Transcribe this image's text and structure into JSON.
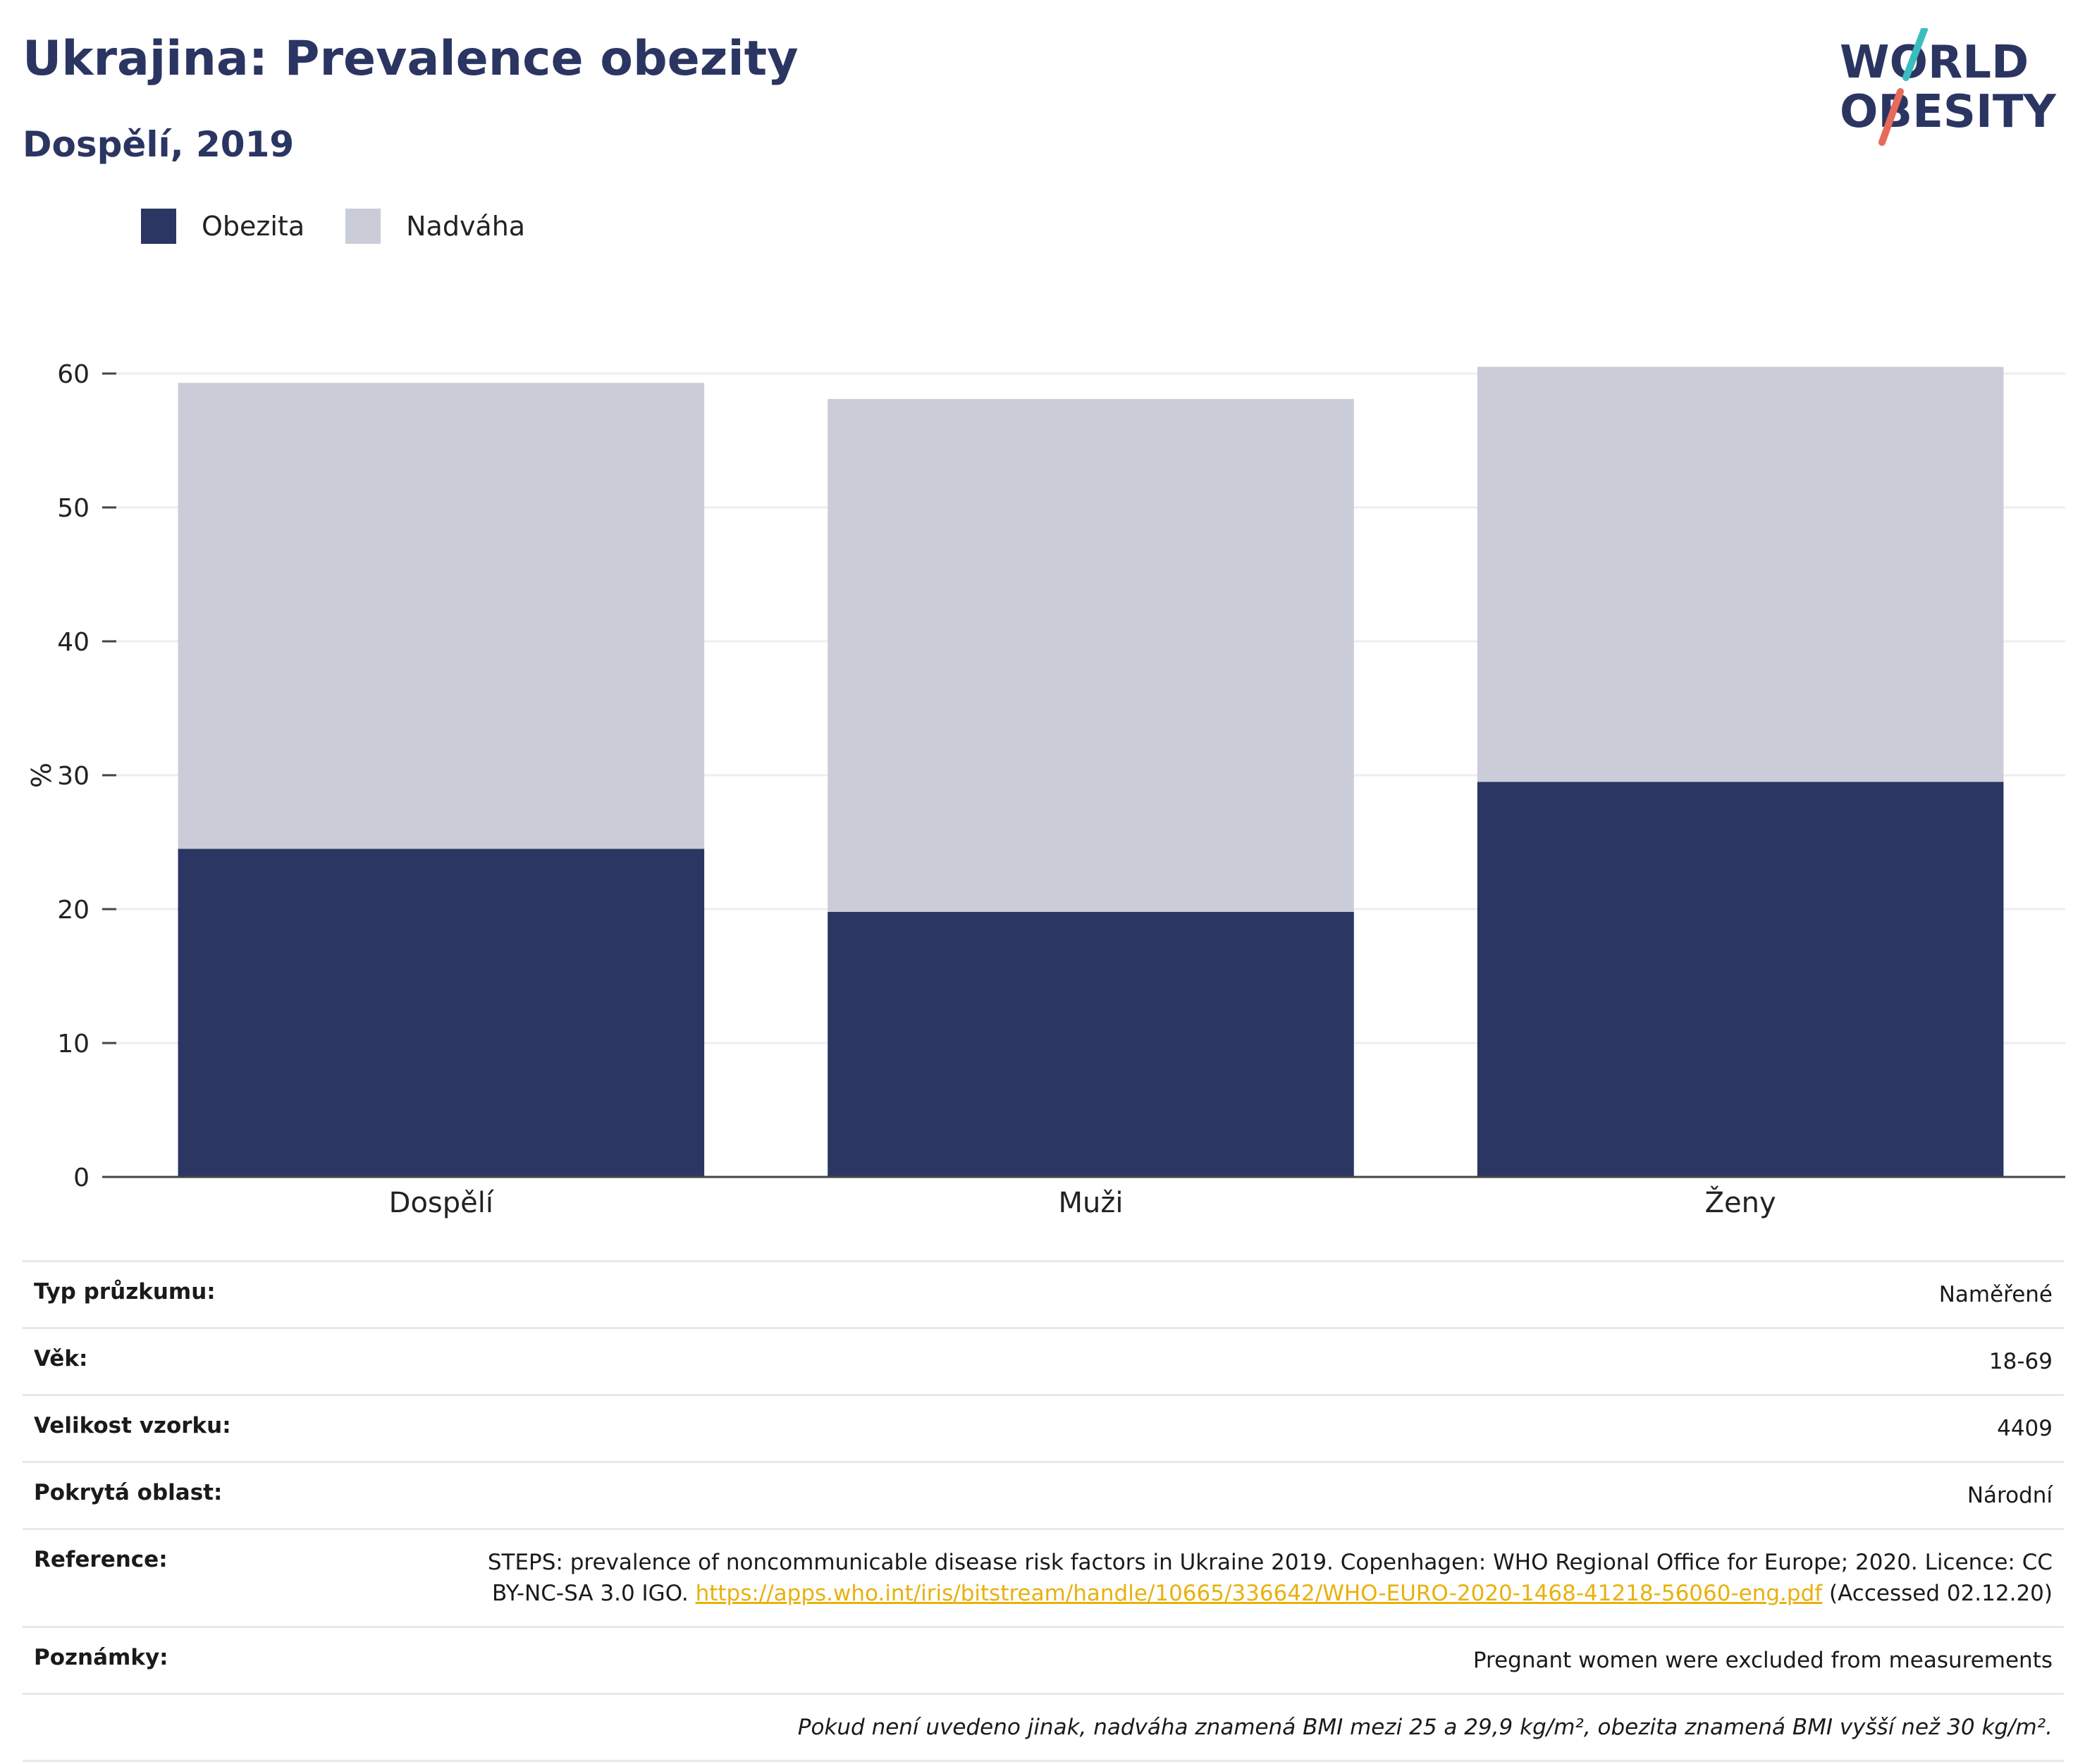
{
  "header": {
    "title": "Ukrajina: Prevalence obezity",
    "subtitle": "Dospělí, 2019"
  },
  "logo": {
    "line1": "WORLD",
    "line2": "OBESITY",
    "colors": {
      "text": "#2b3562",
      "slash_top": "#3bbdbf",
      "slash_bottom": "#e86a5a"
    }
  },
  "legend": [
    {
      "label": "Obezita",
      "color": "#2b3663"
    },
    {
      "label": "Nadváha",
      "color": "#cacdd8"
    }
  ],
  "chart_data": {
    "type": "bar",
    "stacked": true,
    "categories": [
      "Dospělí",
      "Muži",
      "Ženy"
    ],
    "series": [
      {
        "name": "Obezita",
        "values": [
          24.5,
          19.8,
          29.5
        ],
        "color": "#2b3663"
      },
      {
        "name": "Nadváha",
        "values": [
          34.8,
          38.3,
          31.0
        ],
        "color": "#cacdd8"
      }
    ],
    "ylabel": "%",
    "ylim": [
      0,
      60
    ],
    "yticks": [
      "0",
      "10",
      "20",
      "30",
      "40",
      "50",
      "60"
    ],
    "grid": true,
    "legend_position": "top-left"
  },
  "info": {
    "rows": [
      {
        "key": "Typ průzkumu:",
        "value": "Naměřené"
      },
      {
        "key": "Věk:",
        "value": "18-69"
      },
      {
        "key": "Velikost vzorku:",
        "value": "4409"
      },
      {
        "key": "Pokrytá oblast:",
        "value": "Národní"
      }
    ],
    "reference": {
      "key": "Reference:",
      "text_before": "STEPS: prevalence of noncommunicable disease risk factors in Ukraine 2019. Copenhagen: WHO Regional Office for Europe; 2020. Licence: CC BY-NC-SA 3.0 IGO.",
      "link": "https://apps.who.int/iris/bitstream/handle/10665/336642/WHO-EURO-2020-1468-41218-56060-eng.pdf",
      "text_after": "(Accessed 02.12.20)",
      "link_color": "#e8b10d"
    },
    "notes": {
      "key": "Poznámky:",
      "value": "Pregnant women were excluded from measurements"
    },
    "footnote": "Pokud není uvedeno jinak, nadváha znamená BMI mezi 25 a 29,9 kg/m², obezita znamená BMI vyšší než 30 kg/m²."
  }
}
